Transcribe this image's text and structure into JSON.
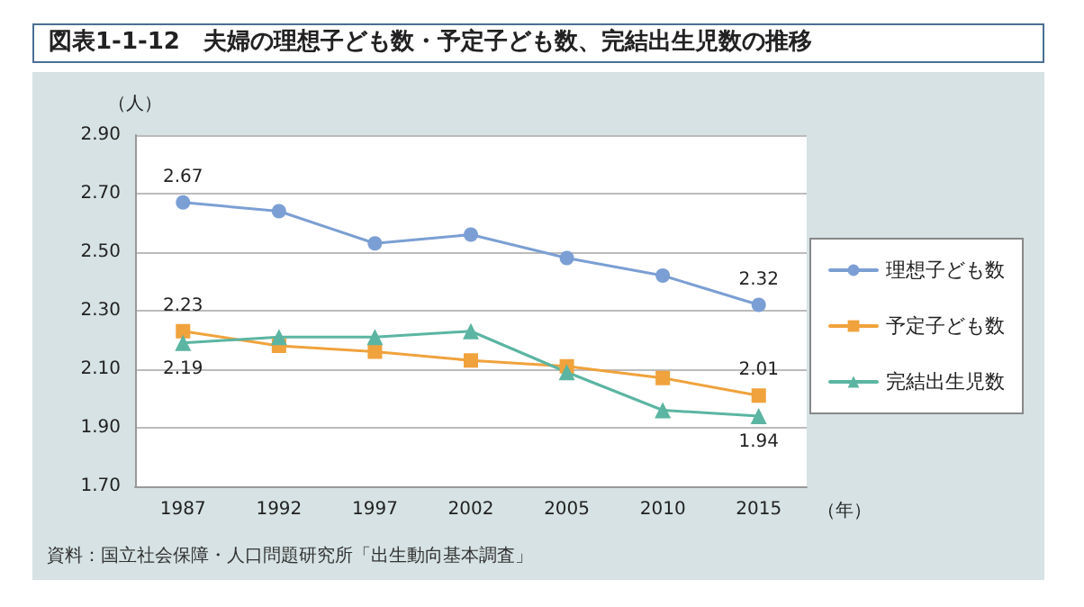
{
  "chart_data": {
    "type": "line",
    "title": "図表1-1-12　夫婦の理想子ども数・予定子ども数、完結出生児数の推移",
    "ylabel": "（人）",
    "xlabel": "（年）",
    "categories": [
      "1987",
      "1992",
      "1997",
      "2002",
      "2005",
      "2010",
      "2015"
    ],
    "series": [
      {
        "name": "理想子ども数",
        "color": "#7b9fd4",
        "marker": "circle",
        "values": [
          2.67,
          2.64,
          2.53,
          2.56,
          2.48,
          2.42,
          2.32
        ],
        "value_labels": [
          "2.67",
          null,
          null,
          null,
          null,
          null,
          "2.32"
        ]
      },
      {
        "name": "予定子ども数",
        "color": "#f0a23c",
        "marker": "square",
        "values": [
          2.23,
          2.18,
          2.16,
          2.13,
          2.11,
          2.07,
          2.01
        ],
        "value_labels": [
          "2.23",
          null,
          null,
          null,
          null,
          null,
          "2.01"
        ]
      },
      {
        "name": "完結出生児数",
        "color": "#5bb5a2",
        "marker": "triangle",
        "values": [
          2.19,
          2.21,
          2.21,
          2.23,
          2.09,
          1.96,
          1.94
        ],
        "value_labels": [
          "2.19",
          null,
          null,
          null,
          null,
          null,
          "1.94"
        ]
      }
    ],
    "ylim": [
      1.7,
      2.9
    ],
    "yticks": [
      {
        "value": 1.7,
        "label": "1.70"
      },
      {
        "value": 1.9,
        "label": "1.90"
      },
      {
        "value": 2.1,
        "label": "2.10"
      },
      {
        "value": 2.3,
        "label": "2.30"
      },
      {
        "value": 2.5,
        "label": "2.50"
      },
      {
        "value": 2.7,
        "label": "2.70"
      },
      {
        "value": 2.9,
        "label": "2.90"
      }
    ],
    "grid": "y",
    "legend": "right",
    "line_style": "solid",
    "annotations": [
      "資料：国立社会保障・人口問題研究所「出生動向基本調査」"
    ]
  }
}
